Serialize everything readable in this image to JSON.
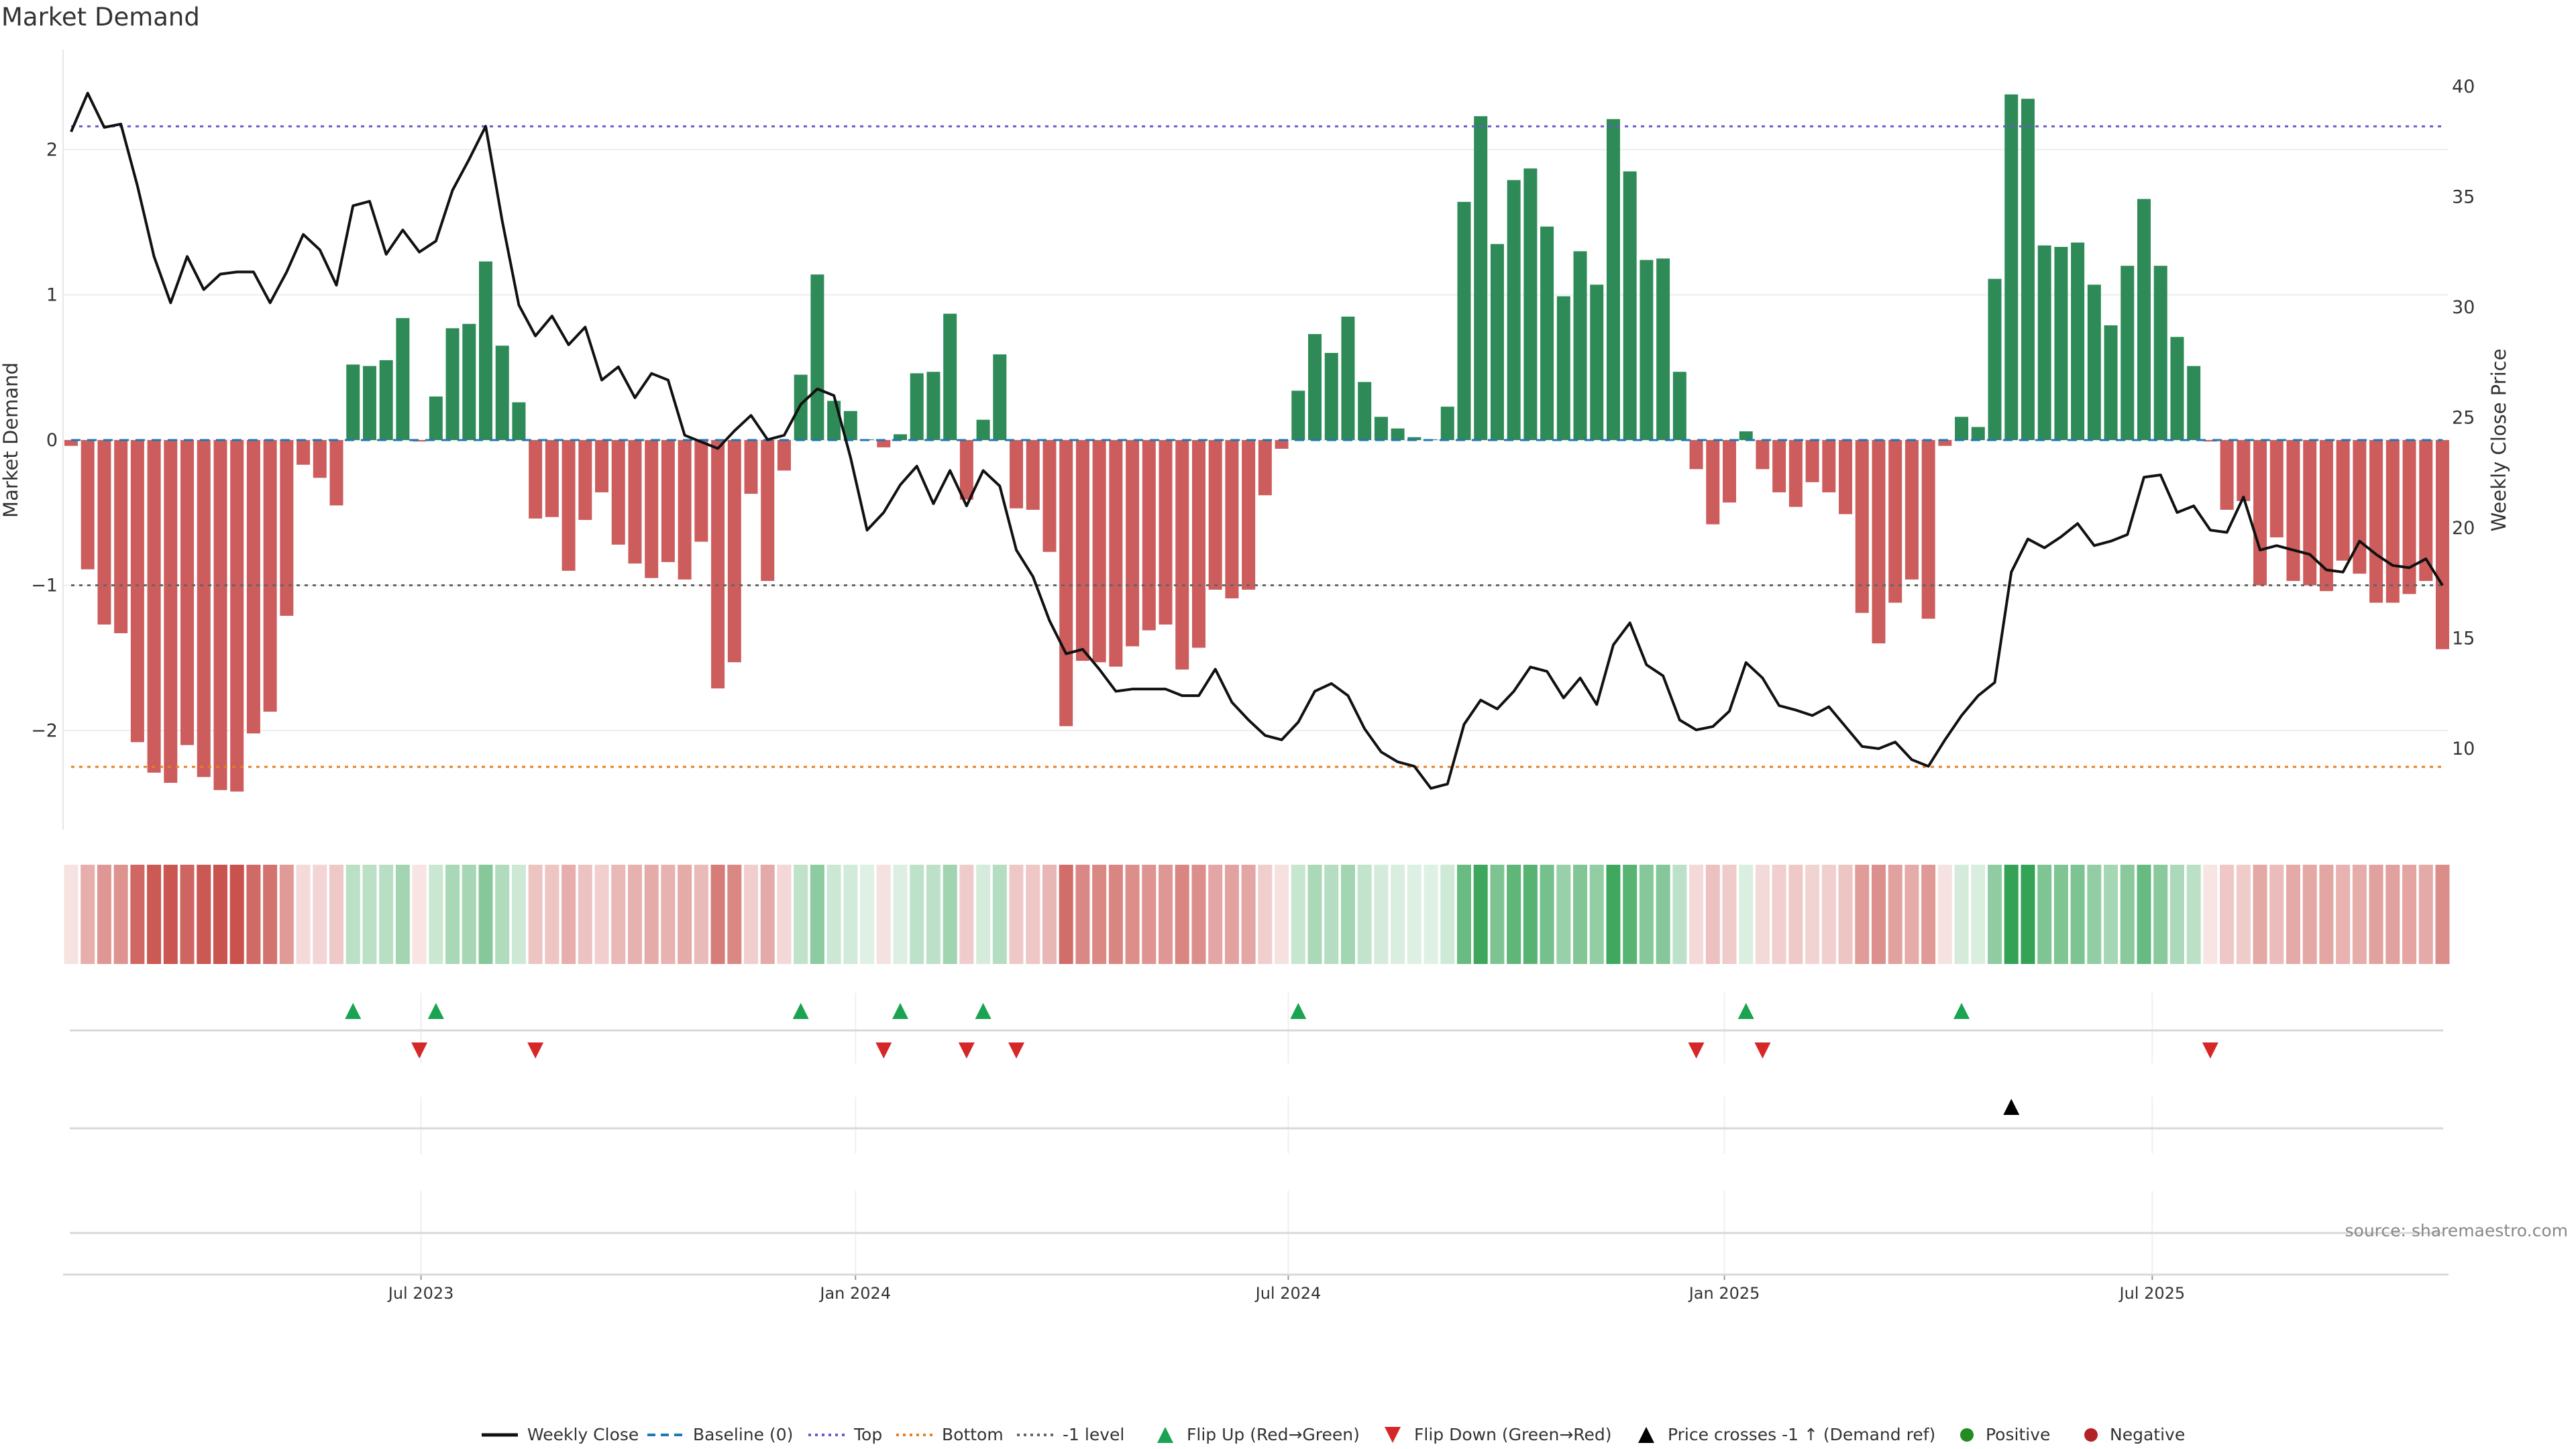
{
  "chart_data": {
    "type": "bar",
    "title": "Market Demand",
    "ylabel": "Market Demand",
    "y2label": "Weekly Close Price",
    "ylim": [
      -2.7,
      2.65
    ],
    "y2lim": [
      6.5,
      42
    ],
    "y_ticks": [
      "2",
      "1",
      "0",
      "−1",
      "−2"
    ],
    "y_tick_values": [
      2,
      1,
      0,
      -1,
      -2
    ],
    "y2_ticks": [
      "40",
      "35",
      "30",
      "25",
      "20",
      "15",
      "10"
    ],
    "y2_tick_values": [
      40,
      35,
      30,
      25,
      20,
      15,
      10
    ],
    "x_ticks": [
      {
        "label": "Jul 2023",
        "week": 21.1
      },
      {
        "label": "Jan 2024",
        "week": 47.3
      },
      {
        "label": "Jul 2024",
        "week": 73.4
      },
      {
        "label": "Jan 2025",
        "week": 99.7
      },
      {
        "label": "Jul 2025",
        "week": 125.5
      }
    ],
    "levels": {
      "top": 2.16,
      "bottom": -2.25,
      "minus_one": -1,
      "baseline": 0
    },
    "series": [
      {
        "name": "Market Demand",
        "values": [
          -0.04,
          -0.89,
          -1.27,
          -1.33,
          -2.08,
          -2.29,
          -2.36,
          -2.1,
          -2.32,
          -2.41,
          -2.42,
          -2.02,
          -1.87,
          -1.21,
          -0.17,
          -0.26,
          -0.45,
          0.52,
          0.51,
          0.55,
          0.84,
          -0.01,
          0.3,
          0.77,
          0.8,
          1.23,
          0.65,
          0.26,
          -0.54,
          -0.53,
          -0.9,
          -0.55,
          -0.36,
          -0.72,
          -0.85,
          -0.95,
          -0.84,
          -0.96,
          -0.7,
          -1.71,
          -1.53,
          -0.37,
          -0.97,
          -0.21,
          0.45,
          1.14,
          0.27,
          0.2,
          0.005,
          -0.05,
          0.04,
          0.46,
          0.47,
          0.87,
          -0.41,
          0.14,
          0.59,
          -0.47,
          -0.48,
          -0.77,
          -1.97,
          -1.52,
          -1.53,
          -1.56,
          -1.42,
          -1.31,
          -1.27,
          -1.58,
          -1.43,
          -1.03,
          -1.09,
          -1.03,
          -0.38,
          -0.06,
          0.34,
          0.73,
          0.6,
          0.85,
          0.4,
          0.16,
          0.08,
          0.02,
          0.005,
          0.23,
          1.64,
          2.23,
          1.35,
          1.79,
          1.87,
          1.47,
          0.99,
          1.3,
          1.07,
          2.21,
          1.85,
          1.24,
          1.25,
          0.47,
          -0.2,
          -0.58,
          -0.43,
          0.06,
          -0.2,
          -0.36,
          -0.46,
          -0.29,
          -0.36,
          -0.51,
          -1.19,
          -1.4,
          -1.12,
          -0.96,
          -1.23,
          -0.04,
          0.16,
          0.09,
          1.11,
          2.38,
          2.35,
          1.34,
          1.33,
          1.36,
          1.07,
          0.79,
          1.2,
          1.66,
          1.2,
          0.71,
          0.51,
          -0.01,
          -0.48,
          -0.42,
          -1.0,
          -0.67,
          -0.97,
          -1.0,
          -1.04,
          -0.83,
          -0.92,
          -1.12,
          -1.12,
          -1.06,
          -0.97,
          -1.44
        ]
      },
      {
        "name": "Weekly Close",
        "values": [
          37.95,
          39.7,
          38.15,
          38.3,
          35.5,
          32.3,
          30.2,
          32.3,
          30.8,
          31.5,
          31.6,
          31.6,
          30.2,
          31.6,
          33.3,
          32.6,
          31.0,
          34.6,
          34.8,
          32.4,
          33.5,
          32.5,
          33.0,
          35.3,
          36.7,
          38.2,
          33.9,
          30.1,
          28.7,
          29.6,
          28.3,
          29.1,
          26.7,
          27.3,
          25.9,
          27.0,
          26.7,
          24.2,
          23.9,
          23.6,
          24.4,
          25.1,
          24.0,
          24.2,
          25.6,
          26.3,
          26.0,
          23.2,
          19.9,
          20.7,
          21.95,
          22.8,
          21.1,
          22.6,
          21.0,
          22.6,
          21.9,
          19.0,
          17.8,
          15.8,
          14.3,
          14.5,
          13.6,
          12.6,
          12.7,
          12.7,
          12.7,
          12.4,
          12.4,
          13.6,
          12.1,
          11.3,
          10.6,
          10.4,
          11.2,
          12.6,
          12.95,
          12.4,
          10.9,
          9.85,
          9.4,
          9.2,
          8.2,
          8.4,
          11.1,
          12.2,
          11.8,
          12.6,
          13.7,
          13.5,
          12.3,
          13.2,
          12.0,
          14.7,
          15.7,
          13.8,
          13.3,
          11.3,
          10.85,
          11.0,
          11.7,
          13.9,
          13.2,
          11.95,
          11.75,
          11.5,
          11.9,
          11.0,
          10.1,
          10.0,
          10.3,
          9.5,
          9.2,
          10.4,
          11.5,
          12.4,
          13.0,
          18.0,
          19.5,
          19.1,
          19.6,
          20.2,
          19.2,
          19.4,
          19.7,
          22.3,
          22.4,
          20.7,
          21.0,
          19.9,
          19.8,
          21.4,
          19.0,
          19.2,
          19.0,
          18.8,
          18.1,
          18.0,
          19.4,
          18.8,
          18.3,
          18.2,
          18.6,
          17.4
        ]
      }
    ],
    "colors": {
      "positive": "#2e8b57",
      "negative": "#cd5c5c",
      "heat_pos": "#2ea050",
      "heat_neg": "#c8504b",
      "price": "#111111",
      "baseline": "#1f77b4",
      "top": "#6a5acd",
      "bottom": "#e67e22",
      "minus_one": "#666666",
      "flip_up": "#1aa350",
      "flip_down": "#d62728",
      "cross": "#000000",
      "legend_pos": "#228b22",
      "legend_neg": "#b22222"
    },
    "legend": {
      "position": "bottom-center",
      "items": [
        {
          "key": "price",
          "label": "Weekly Close"
        },
        {
          "key": "baseline",
          "label": "Baseline (0)"
        },
        {
          "key": "top",
          "label": "Top"
        },
        {
          "key": "bottom",
          "label": "Bottom"
        },
        {
          "key": "minus_one",
          "label": "-1 level"
        },
        {
          "key": "flip_up",
          "label": "Flip Up (Red→Green)"
        },
        {
          "key": "flip_down",
          "label": "Flip Down (Green→Red)"
        },
        {
          "key": "cross",
          "label": "Price crosses -1 ↑ (Demand ref)"
        },
        {
          "key": "legend_pos",
          "label": "Positive"
        },
        {
          "key": "legend_neg",
          "label": "Negative"
        }
      ]
    }
  },
  "source": "source: sharemaestro.com"
}
